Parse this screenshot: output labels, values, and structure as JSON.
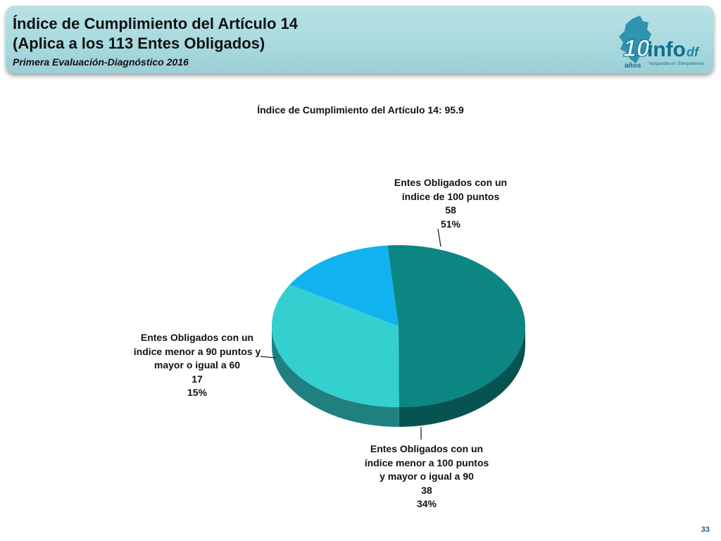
{
  "header": {
    "title_line1": "Índice de Cumplimiento del Artículo 14",
    "title_line2": "(Aplica a los 113 Entes Obligados)",
    "subtitle": "Primera Evaluación-Diagnóstico 2016",
    "logo": {
      "number": "10",
      "years": "años",
      "brand": "info",
      "suffix": "df",
      "tagline": "Vanguardia en Transparencia"
    }
  },
  "chart_data": {
    "type": "pie",
    "title": "Índice de Cumplimiento del Artículo 14: 95.9",
    "total": 113,
    "slices": [
      {
        "label_lines": [
          "Entes Obligados con un",
          "índice de 100 puntos"
        ],
        "value": 58,
        "value_label": "58",
        "percent_label": "51%",
        "color": "#0b8682"
      },
      {
        "label_lines": [
          "Entes Obligados con un",
          "índice  menor a 100 puntos",
          "y mayor o igual a 90"
        ],
        "value": 38,
        "value_label": "38",
        "percent_label": "34%",
        "color": "#34cfcf"
      },
      {
        "label_lines": [
          "Entes Obligados con un",
          "índice menor a 90 puntos y",
          "mayor o igual a 60"
        ],
        "value": 17,
        "value_label": "17",
        "percent_label": "15%",
        "color": "#10b3f0"
      }
    ]
  },
  "footer": {
    "page_number": "33"
  }
}
